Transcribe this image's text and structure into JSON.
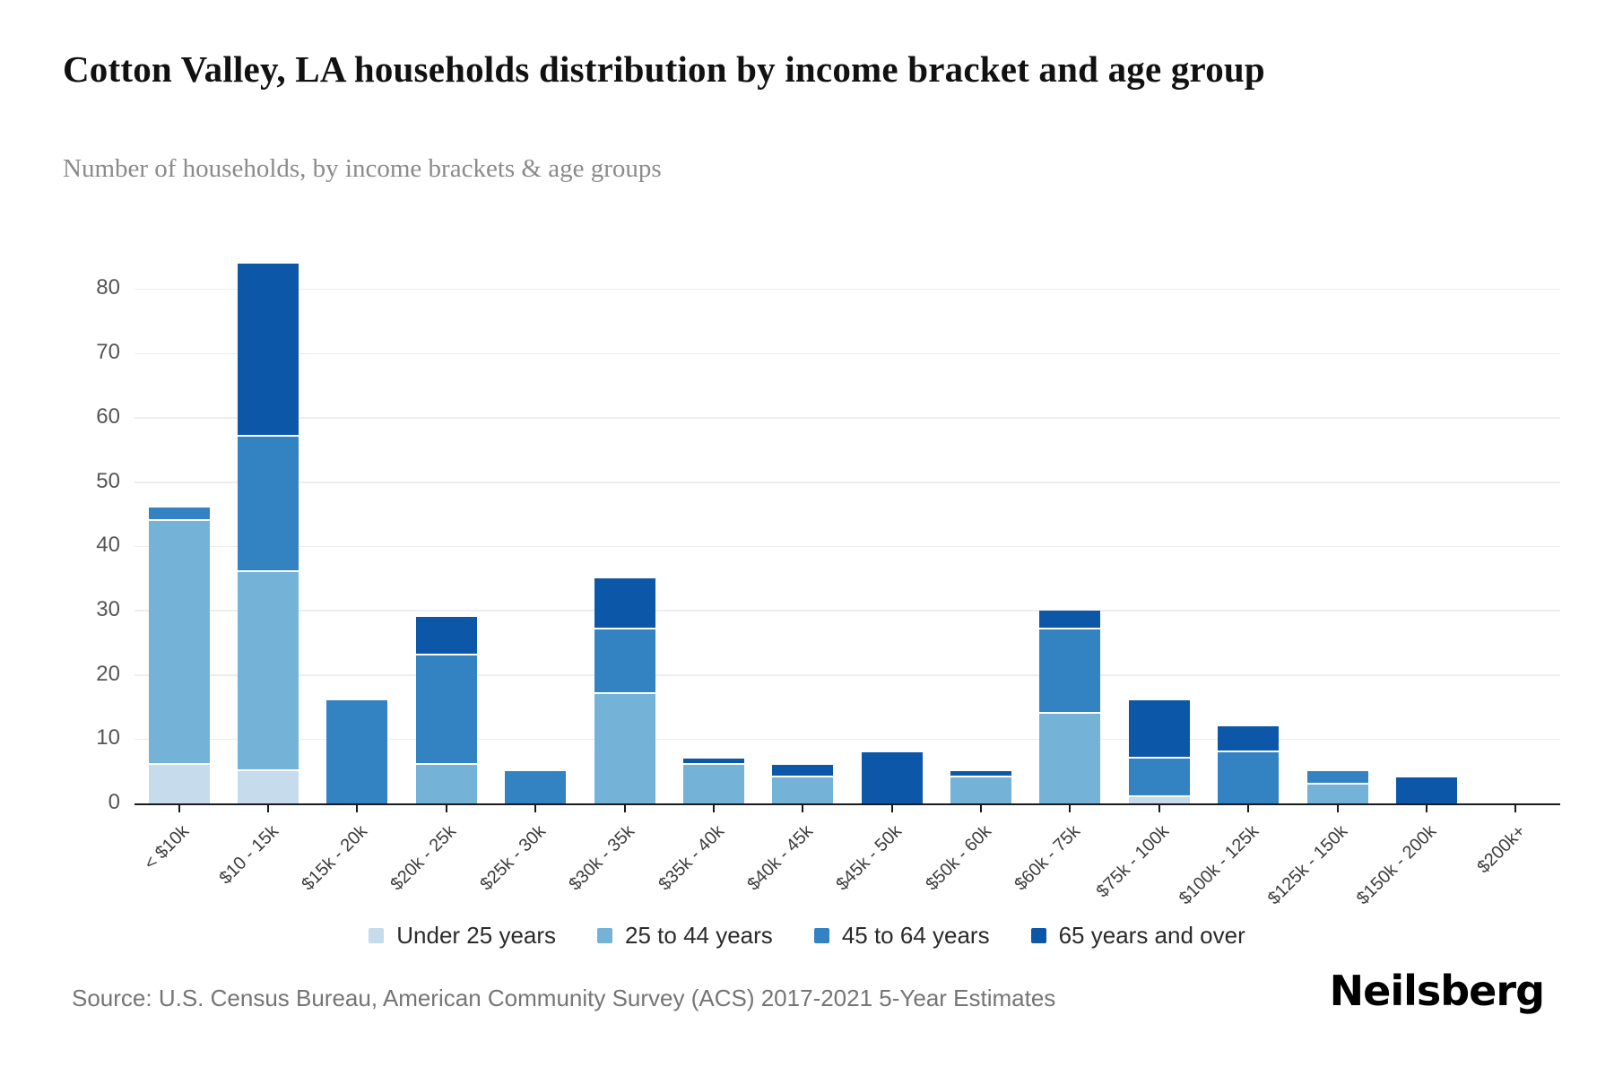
{
  "header": {
    "title": "Cotton Valley, LA households distribution by income bracket and age group",
    "subtitle": "Number of households, by income brackets & age groups"
  },
  "chart_data": {
    "type": "bar",
    "stacked": true,
    "title": "Cotton Valley, LA households distribution by income bracket and age group",
    "ylabel": "Number of households",
    "xlabel": "Income bracket",
    "ylim": [
      0,
      80
    ],
    "ytick_step": 10,
    "grid": true,
    "legend_position": "bottom",
    "categories": [
      "< $10k",
      "$10 - 15k",
      "$15k - 20k",
      "$20k - 25k",
      "$25k - 30k",
      "$30k - 35k",
      "$35k - 40k",
      "$40k - 45k",
      "$45k - 50k",
      "$50k - 60k",
      "$60k - 75k",
      "$75k - 100k",
      "$100k - 125k",
      "$125k - 150k",
      "$150k - 200k",
      "$200k+"
    ],
    "series": [
      {
        "name": "Under 25 years",
        "color": "#c6dbec",
        "values": [
          6,
          5,
          0,
          0,
          0,
          0,
          0,
          0,
          0,
          0,
          0,
          1,
          0,
          0,
          0,
          0
        ]
      },
      {
        "name": "25 to 44 years",
        "color": "#74b2d8",
        "values": [
          38,
          31,
          0,
          6,
          0,
          17,
          6,
          4,
          0,
          4,
          14,
          0,
          0,
          3,
          0,
          0
        ]
      },
      {
        "name": "45 to 64 years",
        "color": "#3383c2",
        "values": [
          2,
          21,
          16,
          17,
          5,
          10,
          0,
          0,
          0,
          0,
          13,
          6,
          8,
          2,
          0,
          0
        ]
      },
      {
        "name": "65 years and over",
        "color": "#0d57a8",
        "values": [
          0,
          27,
          0,
          6,
          0,
          8,
          1,
          2,
          8,
          1,
          3,
          9,
          4,
          0,
          4,
          0
        ]
      }
    ],
    "totals": [
      46,
      84,
      16,
      29,
      5,
      35,
      7,
      6,
      8,
      5,
      30,
      16,
      12,
      5,
      4,
      0
    ]
  },
  "footer": {
    "source": "Source: U.S. Census Bureau, American Community Survey (ACS) 2017-2021 5-Year Estimates",
    "brand": "Neilsberg"
  }
}
